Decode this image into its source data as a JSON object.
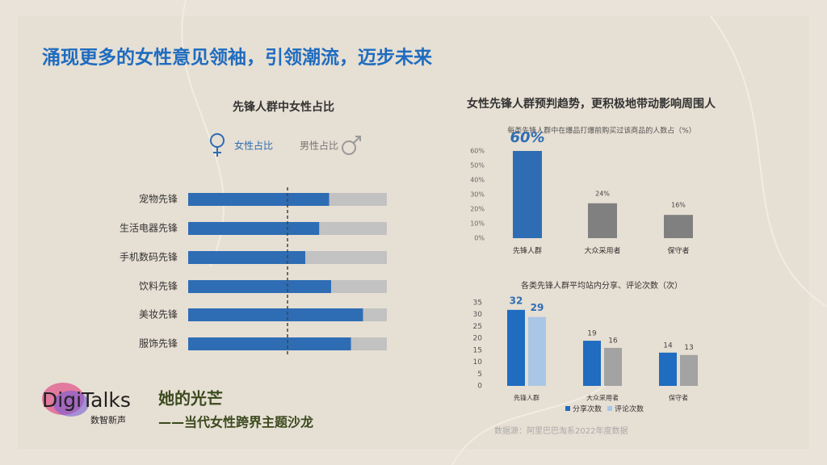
{
  "slide_title": "涌现更多的女性意见领袖，引领潮流，迈步未来",
  "heading": "女性先锋人群预判趋势，更积极地带动影响周围人",
  "chart_data": [
    {
      "type": "hbar-stacked",
      "title": "先锋人群中女性占比",
      "categories": [
        "宠物先锋",
        "生活电器先锋",
        "手机数码先锋",
        "饮料先锋",
        "美妆先锋",
        "服饰先锋"
      ],
      "series": [
        {
          "name": "女性占比",
          "color": "#2e6db4",
          "values": [
            71,
            66,
            59,
            72,
            88,
            82
          ]
        },
        {
          "name": "男性占比",
          "color": "#c2c2c2",
          "values": [
            29,
            34,
            41,
            28,
            12,
            18
          ]
        }
      ],
      "xlim": [
        0,
        100
      ],
      "reference_line": 50
    },
    {
      "type": "bar",
      "title": "每类先锋人群中在爆品打爆前购买过该商品的人数占（%）",
      "categories": [
        "先锋人群",
        "大众采用者",
        "保守者"
      ],
      "values": [
        60,
        24,
        16
      ],
      "value_labels": [
        "60%",
        "24%",
        "16%"
      ],
      "colors": [
        "#2e6db4",
        "#808080",
        "#808080"
      ],
      "ylim": [
        0,
        60
      ],
      "yticks": [
        {
          "value": 0,
          "label": "0%"
        },
        {
          "value": 10,
          "label": "10%"
        },
        {
          "value": 20,
          "label": "20%"
        },
        {
          "value": 30,
          "label": "30%"
        },
        {
          "value": 40,
          "label": "40%"
        },
        {
          "value": 50,
          "label": "50%"
        },
        {
          "value": 60,
          "label": "60%"
        }
      ]
    },
    {
      "type": "grouped-bar",
      "title": "各类先锋人群平均站内分享、评论次数（次）",
      "categories": [
        "先锋人群",
        "大众采用者",
        "保守者"
      ],
      "series": [
        {
          "name": "分享次数",
          "color": "#1f6cc0",
          "colors": [
            "#1f6cc0",
            "#1f6cc0",
            "#1f6cc0"
          ],
          "values": [
            32,
            19,
            14
          ]
        },
        {
          "name": "评论次数",
          "color": "#a9c6e6",
          "colors": [
            "#a9c6e6",
            "#a3a3a3",
            "#a3a3a3"
          ],
          "values": [
            29,
            16,
            13
          ]
        }
      ],
      "ylim": [
        0,
        35
      ],
      "yticks": [
        0,
        5,
        10,
        15,
        20,
        25,
        30,
        35
      ]
    }
  ],
  "logo": {
    "name": "DigiTalks",
    "subtitle": "数智新声"
  },
  "event": {
    "title": "她的光芒",
    "subtitle": "——当代女性跨界主题沙龙"
  },
  "source": "数据源：阿里巴巴淘系2022年度数据"
}
